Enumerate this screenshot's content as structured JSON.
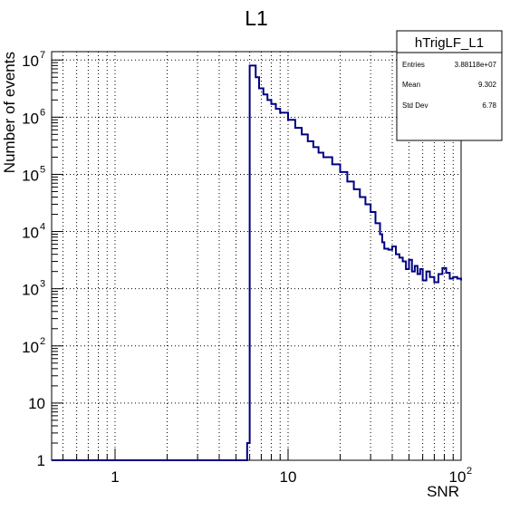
{
  "chart_data": {
    "type": "line",
    "title": "L1",
    "xlabel": "SNR",
    "ylabel": "Number of events",
    "xscale": "log",
    "yscale": "log",
    "xlim": [
      0.43,
      100
    ],
    "ylim": [
      1,
      14000000
    ],
    "grid": true,
    "xticks": [
      {
        "value": 1,
        "base": "1",
        "exp": ""
      },
      {
        "value": 10,
        "base": "10",
        "exp": ""
      },
      {
        "value": 100,
        "base": "10",
        "exp": "2"
      }
    ],
    "yticks": [
      {
        "value": 1,
        "base": "1",
        "exp": ""
      },
      {
        "value": 10,
        "base": "10",
        "exp": ""
      },
      {
        "value": 100,
        "base": "10",
        "exp": "2"
      },
      {
        "value": 1000,
        "base": "10",
        "exp": "3"
      },
      {
        "value": 10000,
        "base": "10",
        "exp": "4"
      },
      {
        "value": 100000,
        "base": "10",
        "exp": "5"
      },
      {
        "value": 1000000,
        "base": "10",
        "exp": "6"
      },
      {
        "value": 10000000,
        "base": "10",
        "exp": "7"
      }
    ],
    "series": [
      {
        "color": "#000080",
        "points": [
          [
            0.43,
            1
          ],
          [
            5.6,
            1
          ],
          [
            5.8,
            2
          ],
          [
            6.0,
            8000000
          ],
          [
            6.25,
            8000000
          ],
          [
            6.5,
            5000000
          ],
          [
            6.8,
            3200000
          ],
          [
            7.2,
            2500000
          ],
          [
            7.6,
            2000000
          ],
          [
            8.0,
            1700000
          ],
          [
            8.5,
            1400000
          ],
          [
            9.0,
            1200000
          ],
          [
            10.0,
            900000
          ],
          [
            11.0,
            650000
          ],
          [
            12.0,
            500000
          ],
          [
            13.0,
            380000
          ],
          [
            14.0,
            300000
          ],
          [
            15.0,
            240000
          ],
          [
            16.0,
            200000
          ],
          [
            18.0,
            150000
          ],
          [
            20.0,
            110000
          ],
          [
            22.0,
            75000
          ],
          [
            24.0,
            55000
          ],
          [
            26.0,
            40000
          ],
          [
            28.0,
            30000
          ],
          [
            30.0,
            22000
          ],
          [
            32.0,
            14000
          ],
          [
            34.0,
            9000
          ],
          [
            35.0,
            6500
          ],
          [
            36.0,
            5000
          ],
          [
            38.0,
            4800
          ],
          [
            40.0,
            5500
          ],
          [
            42.0,
            4000
          ],
          [
            44.0,
            3500
          ],
          [
            46.0,
            3000
          ],
          [
            48.0,
            2200
          ],
          [
            50.0,
            3200
          ],
          [
            52.0,
            2000
          ],
          [
            54.0,
            2500
          ],
          [
            56.0,
            1800
          ],
          [
            58.0,
            2200
          ],
          [
            60.0,
            1400
          ],
          [
            63.0,
            2000
          ],
          [
            66.0,
            1600
          ],
          [
            70.0,
            1300
          ],
          [
            74.0,
            1800
          ],
          [
            78.0,
            2300
          ],
          [
            82.0,
            1900
          ],
          [
            86.0,
            1500
          ],
          [
            90.0,
            1600
          ],
          [
            95.0,
            1500
          ],
          [
            100.0,
            1400
          ]
        ]
      }
    ],
    "stats": {
      "name": "hTrigLF_L1",
      "rows": [
        {
          "label": "Entries",
          "value": "3.88118e+07"
        },
        {
          "label": "Mean",
          "value": "9.302"
        },
        {
          "label": "Std Dev",
          "value": "6.78"
        }
      ]
    }
  }
}
